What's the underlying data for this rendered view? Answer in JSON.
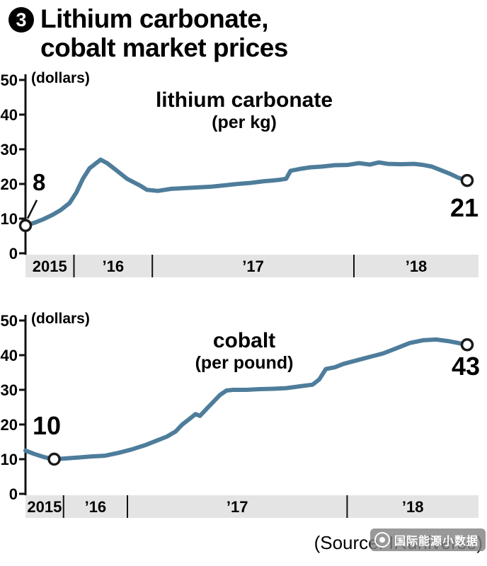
{
  "header": {
    "number": "3",
    "title_line1": "Lithium carbonate,",
    "title_line2": "cobalt market prices"
  },
  "source": "(Source: IRuniverse)",
  "watermark": "国际能源小数据",
  "colors": {
    "band": "#e4e4e4",
    "axis": "#111111"
  },
  "chart_data": [
    {
      "type": "line",
      "name": "lithium-carbonate",
      "label": "lithium carbonate",
      "sublabel": "(per kg)",
      "unit_label": "(dollars)",
      "start_label": "8",
      "end_label": "21",
      "line_color": "#4e7d9b",
      "ylim": [
        0,
        50
      ],
      "yticks": [
        0,
        10,
        20,
        30,
        40,
        50
      ],
      "x_band": {
        "labels": [
          "2015",
          "’16",
          "’17",
          "’18"
        ],
        "separators": [
          0.107,
          0.28,
          0.725
        ]
      },
      "leader": true,
      "start_marker": {
        "x": 0,
        "y": 8
      },
      "end_marker": {
        "x": 1,
        "y": 21
      },
      "x": [
        0,
        0.02,
        0.04,
        0.06,
        0.08,
        0.1,
        0.115,
        0.13,
        0.145,
        0.16,
        0.17,
        0.185,
        0.2,
        0.215,
        0.23,
        0.245,
        0.26,
        0.275,
        0.3,
        0.33,
        0.36,
        0.39,
        0.42,
        0.45,
        0.48,
        0.51,
        0.54,
        0.56,
        0.575,
        0.59,
        0.6,
        0.62,
        0.645,
        0.67,
        0.7,
        0.73,
        0.755,
        0.78,
        0.8,
        0.82,
        0.85,
        0.88,
        0.9,
        0.92,
        0.94,
        0.96,
        0.98,
        1.0
      ],
      "y": [
        8,
        8.8,
        9.8,
        11,
        12.5,
        14.5,
        17.5,
        21.5,
        24.5,
        26,
        27,
        26,
        24.5,
        23,
        21.5,
        20.5,
        19.5,
        18.3,
        18,
        18.6,
        18.8,
        19,
        19.2,
        19.6,
        20,
        20.3,
        20.8,
        21,
        21.2,
        21.5,
        23.8,
        24.3,
        24.8,
        25,
        25.4,
        25.5,
        26,
        25.6,
        26.2,
        25.8,
        25.7,
        25.8,
        25.5,
        25,
        24,
        23,
        21.8,
        21
      ]
    },
    {
      "type": "line",
      "name": "cobalt",
      "label": "cobalt",
      "sublabel": "(per pound)",
      "unit_label": "(dollars)",
      "start_label": "10",
      "end_label": "43",
      "line_color": "#4e7d9b",
      "ylim": [
        0,
        50
      ],
      "yticks": [
        0,
        10,
        20,
        30,
        40,
        50
      ],
      "x_band": {
        "labels": [
          "2015",
          "’16",
          "’17",
          "’18"
        ],
        "separators": [
          0.084,
          0.225,
          0.71
        ]
      },
      "leader": false,
      "start_marker": {
        "x": 0.065,
        "y": 10
      },
      "end_marker": {
        "x": 1,
        "y": 43
      },
      "x": [
        0,
        0.02,
        0.045,
        0.065,
        0.09,
        0.12,
        0.15,
        0.18,
        0.21,
        0.24,
        0.27,
        0.3,
        0.32,
        0.34,
        0.355,
        0.37,
        0.385,
        0.395,
        0.41,
        0.425,
        0.44,
        0.455,
        0.47,
        0.5,
        0.53,
        0.56,
        0.59,
        0.62,
        0.65,
        0.665,
        0.68,
        0.7,
        0.72,
        0.75,
        0.78,
        0.81,
        0.84,
        0.87,
        0.9,
        0.93,
        0.96,
        0.98,
        1.0
      ],
      "y": [
        12.5,
        11.5,
        10.5,
        10,
        10.2,
        10.5,
        10.8,
        11,
        11.8,
        12.8,
        14,
        15.5,
        16.5,
        18,
        20,
        21.5,
        23,
        22.5,
        24.5,
        26.5,
        28.5,
        29.8,
        30,
        30,
        30.2,
        30.3,
        30.5,
        31,
        31.5,
        33,
        36,
        36.5,
        37.5,
        38.5,
        39.5,
        40.5,
        42,
        43.5,
        44.3,
        44.5,
        44,
        43.5,
        43
      ]
    }
  ]
}
